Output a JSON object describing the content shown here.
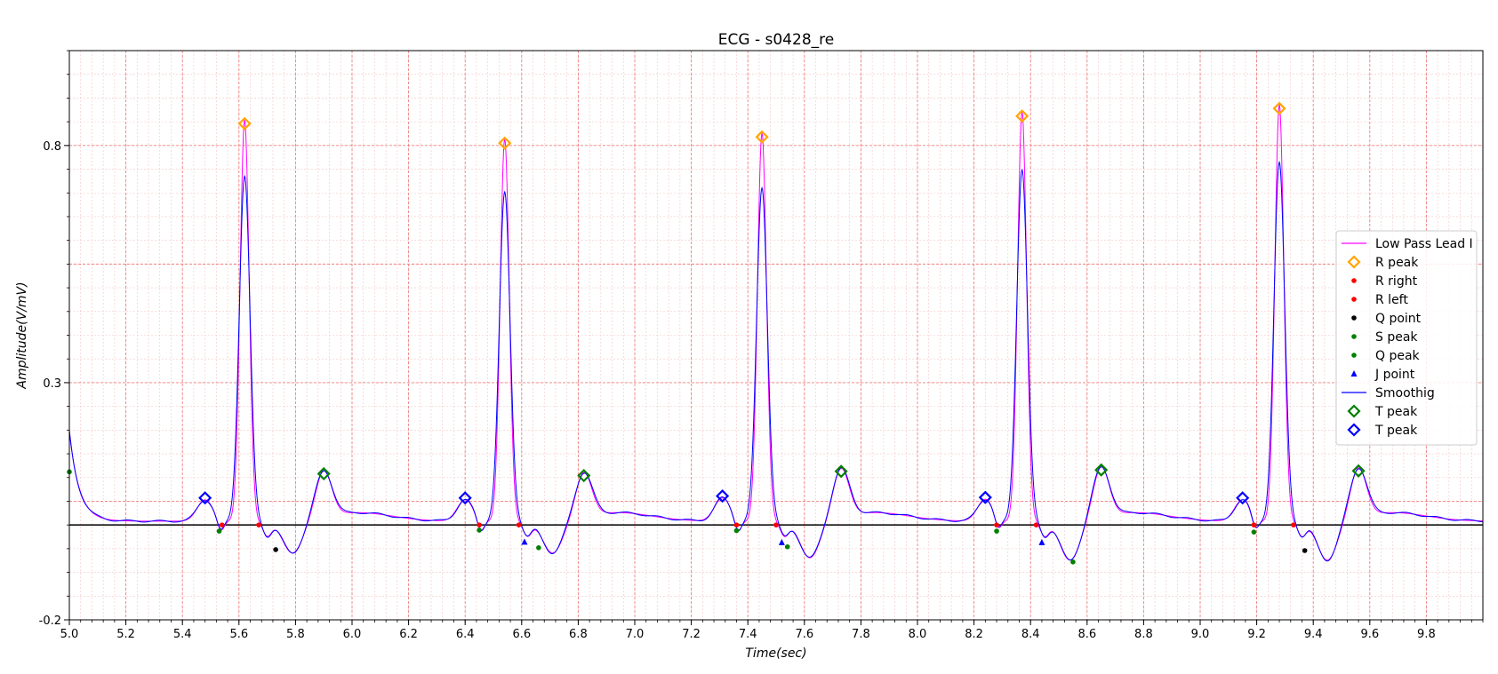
{
  "colors": {
    "raw": "#ff00ff",
    "smooth": "#0000ff",
    "r_peak": "#ffa500",
    "r_edge": "#ff0000",
    "q_point": "#000000",
    "green": "#008000",
    "t_peak_green": "#008000",
    "t_peak_blue": "#0000ff",
    "baseline": "#000000",
    "grid_major": "#f08080",
    "grid_minor": "#f6c4c4"
  },
  "chart_data": {
    "type": "line",
    "title": "ECG - s0428_re",
    "xlabel": "Time(sec)",
    "ylabel": "Amplitude(V/mV)",
    "xlim": [
      5.0,
      10.0
    ],
    "ylim": [
      -0.2,
      1.0
    ],
    "grid": true,
    "legend_position": "right",
    "x_ticks": [
      "5.0",
      "5.2",
      "5.4",
      "5.6",
      "5.8",
      "6.0",
      "6.2",
      "6.4",
      "6.6",
      "6.8",
      "7.0",
      "7.2",
      "7.4",
      "7.6",
      "7.8",
      "8.0",
      "8.2",
      "8.4",
      "8.6",
      "8.8",
      "9.0",
      "9.2",
      "9.4",
      "9.6",
      "9.8"
    ],
    "y_ticks": [
      "-0.2",
      "0.3",
      "0.8"
    ],
    "baseline_y": 0.0,
    "beats_r_time": [
      5.62,
      6.54,
      7.45,
      8.37,
      9.28
    ],
    "series": [
      {
        "name": "Low Pass Lead I",
        "kind": "line",
        "color_key": "raw"
      },
      {
        "name": "R peak",
        "kind": "diamond",
        "color_key": "r_peak",
        "points": [
          [
            5.62,
            0.846
          ],
          [
            6.54,
            0.805
          ],
          [
            7.45,
            0.818
          ],
          [
            8.37,
            0.862
          ],
          [
            9.28,
            0.878
          ]
        ]
      },
      {
        "name": "R right",
        "kind": "dot",
        "color_key": "r_edge",
        "points": [
          [
            5.54,
            0.0
          ],
          [
            6.45,
            0.0
          ],
          [
            7.36,
            0.0
          ],
          [
            8.28,
            0.0
          ],
          [
            9.19,
            0.0
          ]
        ]
      },
      {
        "name": "R left",
        "kind": "dot",
        "color_key": "r_edge",
        "points": [
          [
            5.67,
            0.0
          ],
          [
            6.59,
            0.0
          ],
          [
            7.5,
            0.0
          ],
          [
            8.42,
            0.0
          ],
          [
            9.33,
            0.0
          ]
        ]
      },
      {
        "name": "Q point",
        "kind": "dot",
        "color_key": "q_point",
        "points": [
          [
            5.73,
            -0.052
          ],
          [
            9.37,
            -0.054
          ]
        ]
      },
      {
        "name": "S peak",
        "kind": "dot",
        "color_key": "green",
        "points": [
          [
            5.53,
            -0.013
          ],
          [
            6.45,
            -0.011
          ],
          [
            7.36,
            -0.012
          ],
          [
            8.28,
            -0.013
          ],
          [
            9.19,
            -0.015
          ]
        ]
      },
      {
        "name": "Q peak",
        "kind": "dot",
        "color_key": "green",
        "points": [
          [
            5.0,
            0.112
          ],
          [
            6.66,
            -0.048
          ],
          [
            7.54,
            -0.046
          ],
          [
            8.55,
            -0.078
          ]
        ]
      },
      {
        "name": "J point",
        "kind": "triangle",
        "color_key": "smooth",
        "points": [
          [
            6.61,
            -0.036
          ],
          [
            7.52,
            -0.037
          ],
          [
            8.44,
            -0.037
          ]
        ]
      },
      {
        "name": "Smoothig",
        "kind": "line",
        "color_key": "smooth"
      },
      {
        "name": "T peak",
        "kind": "diamond",
        "color_key": "t_peak_green",
        "points": [
          [
            5.9,
            0.108
          ],
          [
            6.82,
            0.104
          ],
          [
            7.73,
            0.113
          ],
          [
            8.65,
            0.116
          ],
          [
            9.56,
            0.114
          ]
        ]
      },
      {
        "name": "T peak",
        "kind": "diamond",
        "color_key": "t_peak_blue",
        "points": [
          [
            5.48,
            0.057
          ],
          [
            6.4,
            0.057
          ],
          [
            7.31,
            0.061
          ],
          [
            8.24,
            0.058
          ],
          [
            9.15,
            0.057
          ]
        ]
      }
    ]
  }
}
